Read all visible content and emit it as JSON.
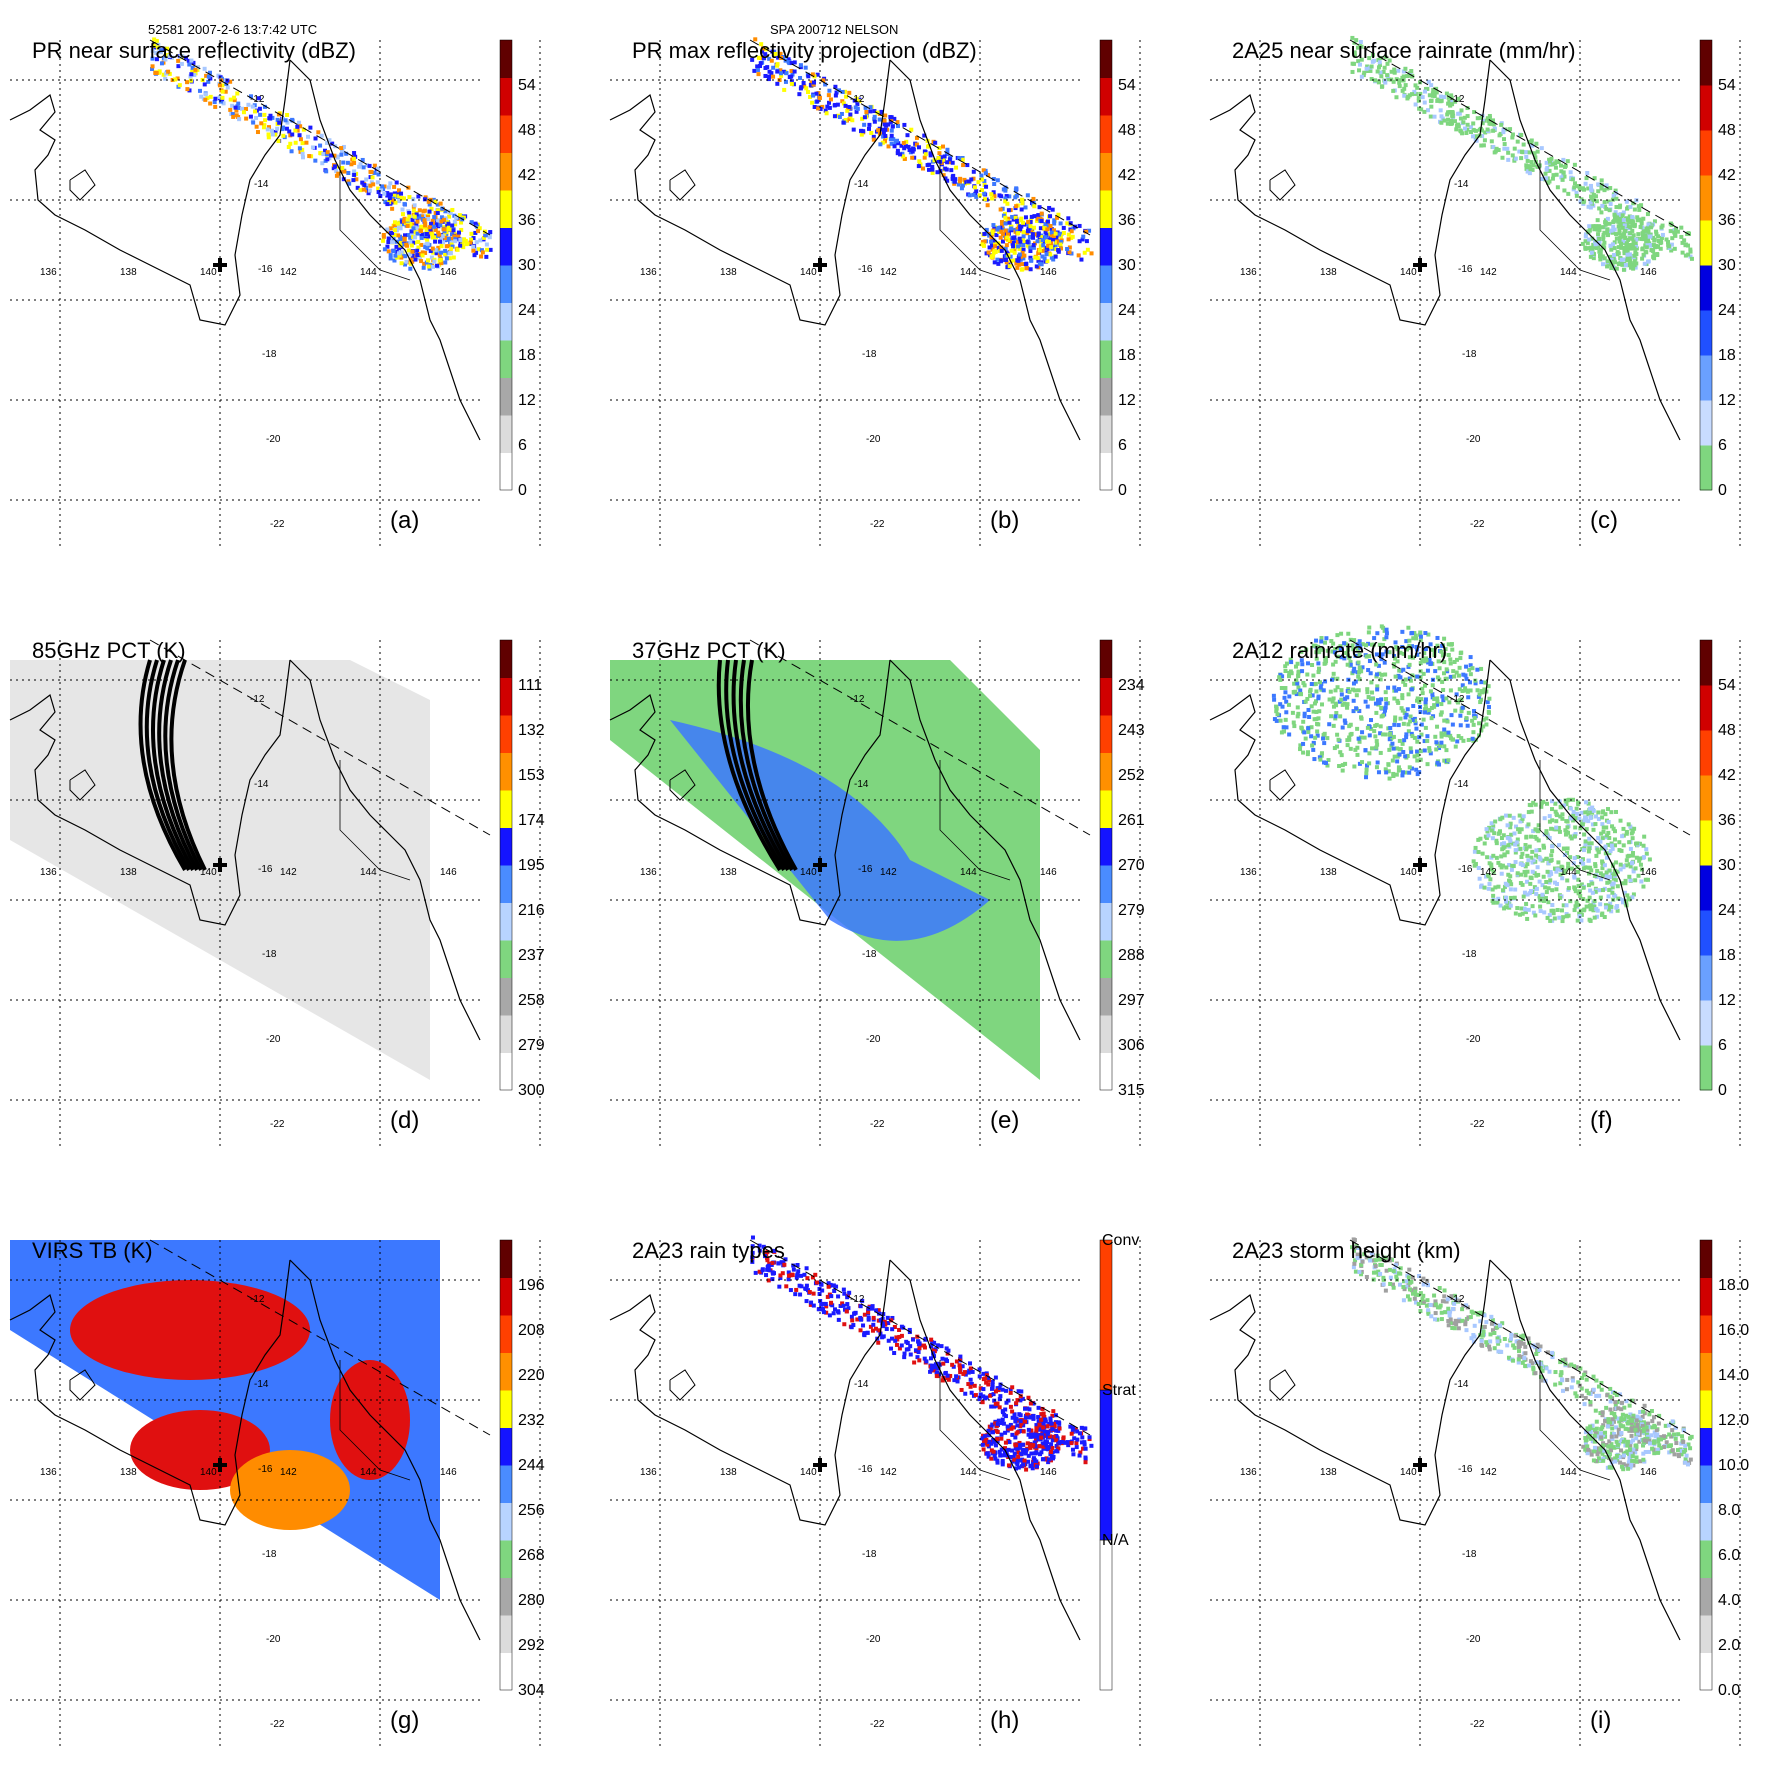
{
  "header": {
    "left": "52581 2007-2-6 13:7:42 UTC",
    "center": "SPA 200712 NELSON"
  },
  "map": {
    "lon_labels": [
      "136",
      "138",
      "140",
      "142",
      "144",
      "146"
    ],
    "lat_labels": [
      "-12",
      "-14",
      "-16",
      "-18",
      "-20",
      "-22"
    ]
  },
  "colors": {
    "green": "#7fd67f",
    "blue_dark": "#1a1aff",
    "blue_mid": "#3c78ff",
    "blue_light": "#a8c8ff",
    "yellow": "#ffff00",
    "orange": "#ff8c00",
    "red": "#e01010",
    "darkred": "#600000",
    "gray": "#a0a0a0"
  },
  "chart_data": [
    {
      "id": "a",
      "type": "heatmap",
      "title": "PR near surface reflectivity (dBZ)",
      "panel_label": "(a)",
      "colorbar_ticks": [
        "54",
        "48",
        "42",
        "36",
        "30",
        "24",
        "18",
        "12",
        "6",
        "0"
      ],
      "cbar": "dbz"
    },
    {
      "id": "b",
      "type": "heatmap",
      "title": "PR max reflectivity projection (dBZ)",
      "panel_label": "(b)",
      "colorbar_ticks": [
        "54",
        "48",
        "42",
        "36",
        "30",
        "24",
        "18",
        "12",
        "6",
        "0"
      ],
      "cbar": "dbz"
    },
    {
      "id": "c",
      "type": "heatmap",
      "title": "2A25 near surface rainrate (mm/hr)",
      "panel_label": "(c)",
      "colorbar_ticks": [
        "54",
        "48",
        "42",
        "36",
        "30",
        "24",
        "18",
        "12",
        "6",
        "0"
      ],
      "cbar": "rain"
    },
    {
      "id": "d",
      "type": "heatmap",
      "title": "85GHz PCT (K)",
      "panel_label": "(d)",
      "colorbar_ticks": [
        "111",
        "132",
        "153",
        "174",
        "195",
        "216",
        "237",
        "258",
        "279",
        "300"
      ],
      "cbar": "pct"
    },
    {
      "id": "e",
      "type": "heatmap",
      "title": "37GHz PCT (K)",
      "panel_label": "(e)",
      "colorbar_ticks": [
        "234",
        "243",
        "252",
        "261",
        "270",
        "279",
        "288",
        "297",
        "306",
        "315"
      ],
      "cbar": "pct"
    },
    {
      "id": "f",
      "type": "heatmap",
      "title": "2A12 rainrate (mm/hr)",
      "panel_label": "(f)",
      "colorbar_ticks": [
        "54",
        "48",
        "42",
        "36",
        "30",
        "24",
        "18",
        "12",
        "6",
        "0"
      ],
      "cbar": "rain"
    },
    {
      "id": "g",
      "type": "heatmap",
      "title": "VIRS TB (K)",
      "panel_label": "(g)",
      "colorbar_ticks": [
        "196",
        "208",
        "220",
        "232",
        "244",
        "256",
        "268",
        "280",
        "292",
        "304"
      ],
      "cbar": "pct"
    },
    {
      "id": "h",
      "type": "heatmap",
      "title": "2A23 rain types",
      "panel_label": "(h)",
      "colorbar_ticks": [
        "Conv",
        "Strat",
        "N/A"
      ],
      "cbar": "types"
    },
    {
      "id": "i",
      "type": "heatmap",
      "title": "2A23 storm height (km)",
      "panel_label": "(i)",
      "colorbar_ticks": [
        "18.0",
        "16.0",
        "14.0",
        "12.0",
        "10.0",
        "8.0",
        "6.0",
        "4.0",
        "2.0",
        "0.0"
      ],
      "cbar": "height"
    }
  ]
}
